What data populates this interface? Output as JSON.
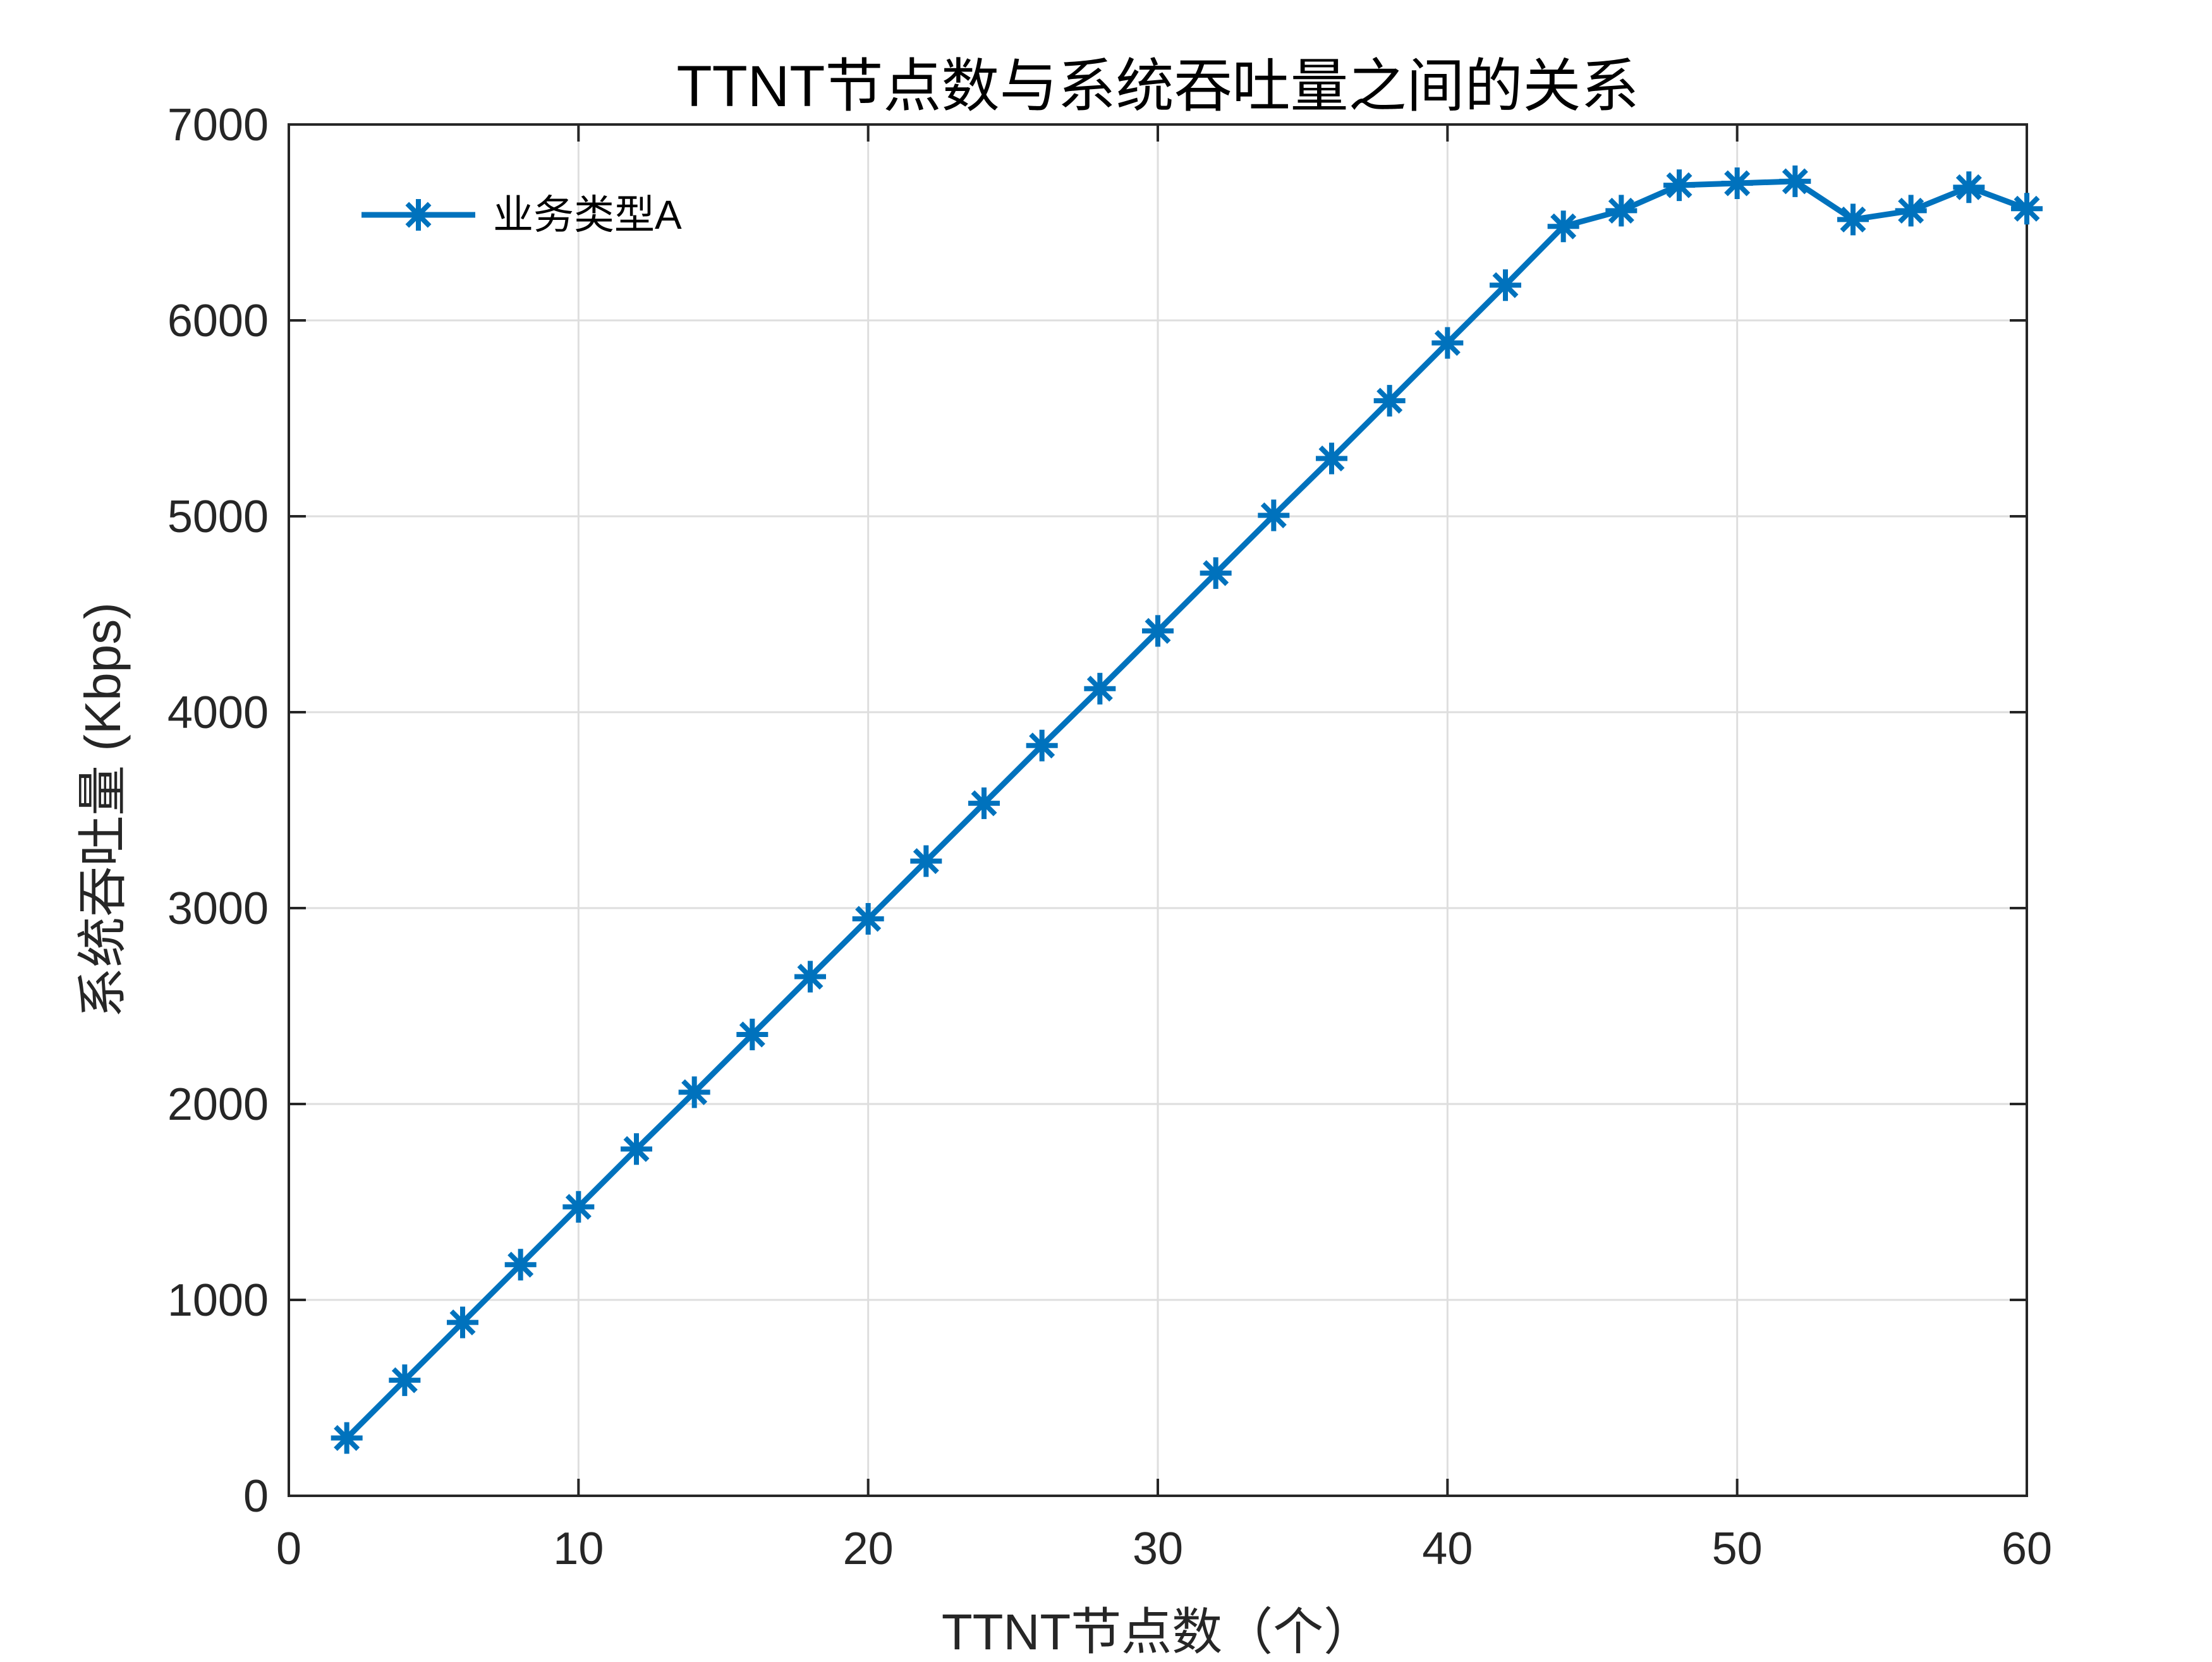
{
  "chart_data": {
    "type": "line",
    "title": "TTNT节点数与系统吞吐量之间的关系",
    "xlabel": "TTNT节点数（个）",
    "ylabel": "系统吞吐量 (Kbps)",
    "xlim": [
      0,
      60
    ],
    "ylim": [
      0,
      7000
    ],
    "xticks": [
      0,
      10,
      20,
      30,
      40,
      50,
      60
    ],
    "yticks": [
      0,
      1000,
      2000,
      3000,
      4000,
      5000,
      6000,
      7000
    ],
    "grid": true,
    "legend_position": "top-left",
    "series": [
      {
        "name": "业务类型A",
        "color": "#0072BD",
        "marker": "asterisk",
        "x": [
          2,
          4,
          6,
          8,
          10,
          12,
          14,
          16,
          18,
          20,
          22,
          24,
          26,
          28,
          30,
          32,
          34,
          36,
          38,
          40,
          42,
          44,
          46,
          48,
          50,
          52,
          54,
          56,
          58,
          60
        ],
        "y": [
          295,
          590,
          885,
          1180,
          1475,
          1770,
          2060,
          2355,
          2650,
          2945,
          3240,
          3535,
          3830,
          4120,
          4415,
          4710,
          5005,
          5295,
          5590,
          5885,
          6180,
          6480,
          6560,
          6690,
          6700,
          6710,
          6515,
          6560,
          6680,
          6570
        ]
      }
    ]
  }
}
